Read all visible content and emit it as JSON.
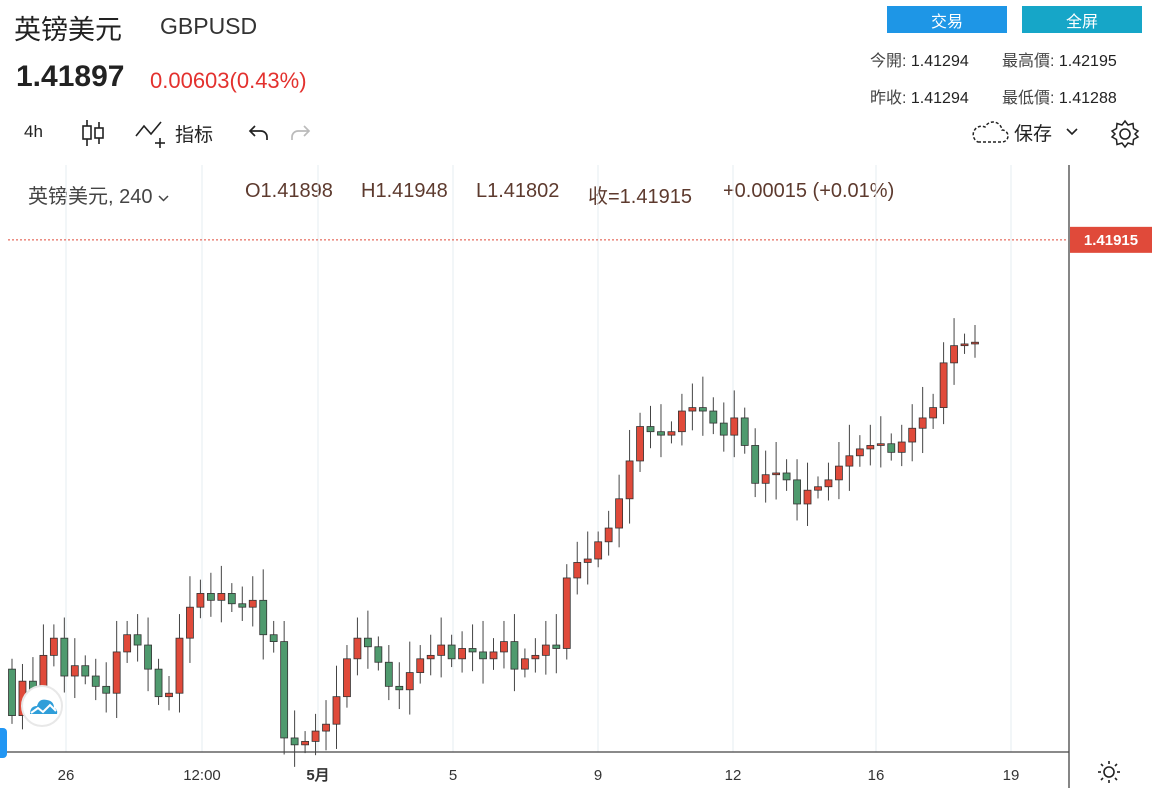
{
  "header": {
    "name": "英镑美元",
    "symbol": "GBPUSD",
    "last_price": "1.41897",
    "change": "0.00603(0.43%)",
    "trade_label": "交易",
    "fullscreen_label": "全屏"
  },
  "stats": {
    "open_label": "今開:",
    "open": "1.41294",
    "high_label": "最高價:",
    "high": "1.42195",
    "prev_close_label": "昨收:",
    "prev_close": "1.41294",
    "low_label": "最低價:",
    "low": "1.41288"
  },
  "toolbar": {
    "interval": "4h",
    "indicators_label": "指标",
    "save_label": "保存"
  },
  "legend": {
    "name": "英镑美元, 240",
    "open": "O1.41898",
    "high": "H1.41948",
    "low": "L1.41802",
    "close": "收=1.41915",
    "change": "+0.00015 (+0.01%)"
  },
  "chart_data": {
    "type": "candlestick",
    "interval": "240",
    "last_price_label": "1.41915",
    "x_ticks": [
      "26",
      "12:00",
      "5月",
      "5",
      "9",
      "12",
      "16",
      "19"
    ],
    "y_range": [
      1.3895,
      1.4235
    ],
    "colors": {
      "up": "#e04a3a",
      "down": "#4f9a6e",
      "price_line": "#e04a3a"
    },
    "candles": []
  },
  "icons": {
    "candles": "candlestick-icon",
    "indicators": "indicators-icon",
    "undo": "undo-icon",
    "redo": "redo-icon",
    "cloud": "cloud-icon",
    "settings": "gear-icon",
    "logo": "cloud-logo-icon",
    "timezone": "sun-icon"
  }
}
